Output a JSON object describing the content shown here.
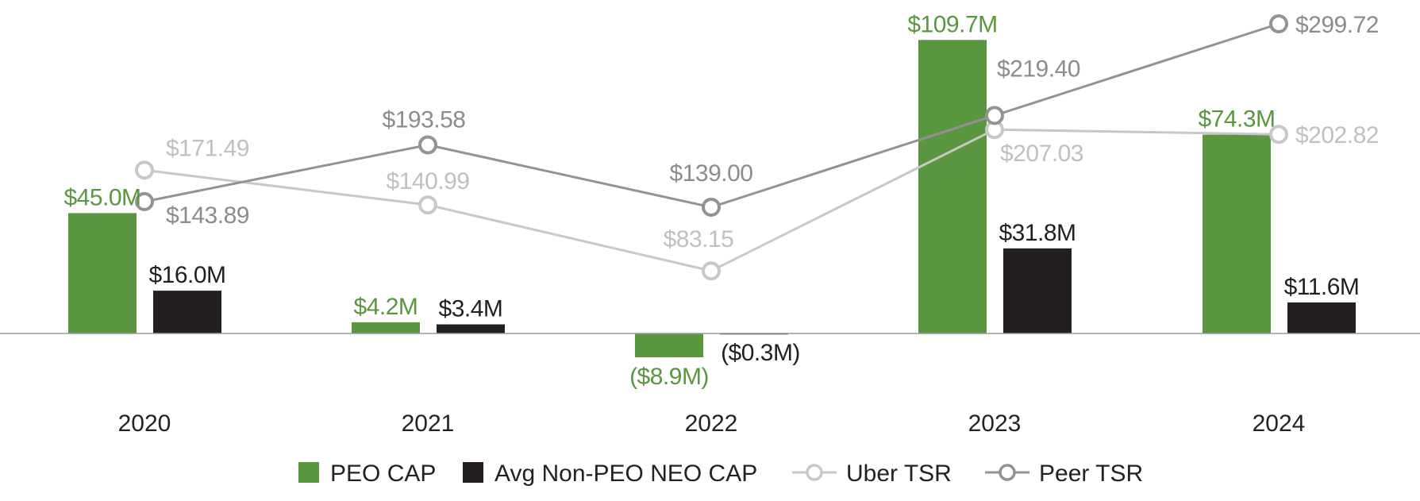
{
  "chart_data": {
    "type": "bar+line",
    "categories": [
      "2020",
      "2021",
      "2022",
      "2023",
      "2024"
    ],
    "bar_series": [
      {
        "name": "PEO CAP",
        "values": [
          45.0,
          4.2,
          -8.9,
          109.7,
          74.3
        ],
        "labels": [
          "$45.0M",
          "$4.2M",
          "($8.9M)",
          "$109.7M",
          "$74.3M"
        ],
        "color": "#5a9640"
      },
      {
        "name": "Avg Non-PEO NEO CAP",
        "values": [
          16.0,
          3.4,
          -0.3,
          31.8,
          11.6
        ],
        "labels": [
          "$16.0M",
          "$3.4M",
          "($0.3M)",
          "$31.8M",
          "$11.6M"
        ],
        "color": "#231f20"
      }
    ],
    "line_series": [
      {
        "name": "Uber TSR",
        "values": [
          171.49,
          140.99,
          83.15,
          207.03,
          202.82
        ],
        "labels": [
          "$171.49",
          "$140.99",
          "$83.15",
          "$207.03",
          "$202.82"
        ],
        "color": "#c8c8c8",
        "label_color": "#c0c0c0"
      },
      {
        "name": "Peer TSR",
        "values": [
          143.89,
          193.58,
          139.0,
          219.4,
          299.72
        ],
        "labels": [
          "$143.89",
          "$193.58",
          "$139.00",
          "$219.40",
          "$299.72"
        ],
        "color": "#939393",
        "label_color": "#8c8c8c"
      }
    ],
    "legend_position": "bottom",
    "grid": false,
    "y_axis_visible": false
  }
}
